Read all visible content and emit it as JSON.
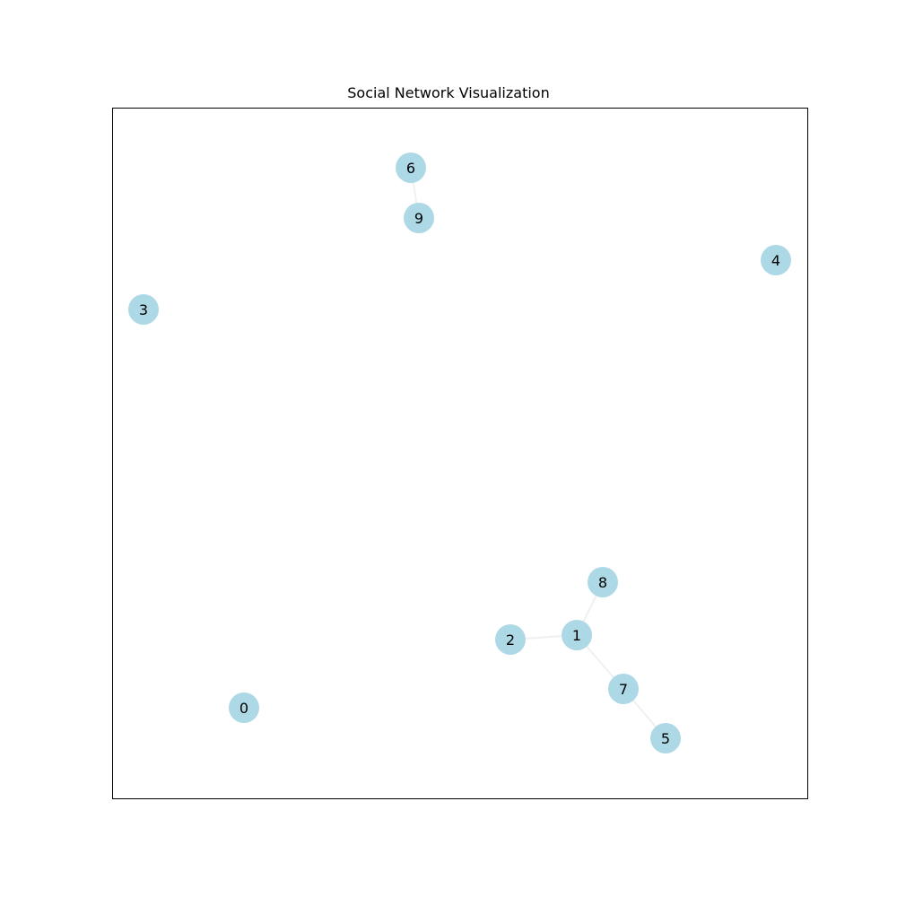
{
  "title": "Social Network Visualization",
  "colors": {
    "node": "#add8e6",
    "edge": "#f0f0f0",
    "frame": "#000000"
  },
  "nodes": [
    {
      "id": "0",
      "label": "0"
    },
    {
      "id": "1",
      "label": "1"
    },
    {
      "id": "2",
      "label": "2"
    },
    {
      "id": "3",
      "label": "3"
    },
    {
      "id": "4",
      "label": "4"
    },
    {
      "id": "5",
      "label": "5"
    },
    {
      "id": "6",
      "label": "6"
    },
    {
      "id": "7",
      "label": "7"
    },
    {
      "id": "8",
      "label": "8"
    },
    {
      "id": "9",
      "label": "9"
    }
  ],
  "edges": [
    [
      "6",
      "9"
    ],
    [
      "2",
      "1"
    ],
    [
      "1",
      "8"
    ],
    [
      "1",
      "7"
    ],
    [
      "7",
      "5"
    ]
  ]
}
